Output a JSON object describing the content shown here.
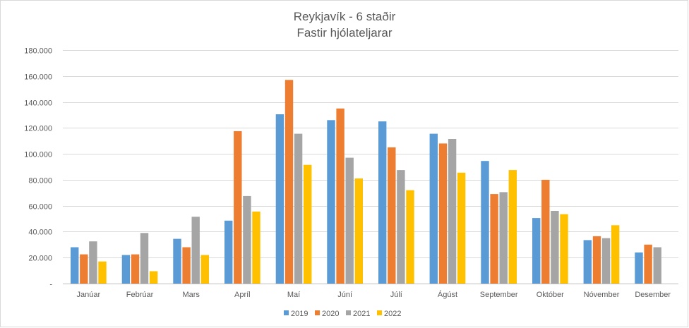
{
  "chart_data": {
    "type": "bar",
    "title": [
      "Reykjavík - 6 staðir",
      "Fastir hjólateljarar"
    ],
    "xlabel": "",
    "ylabel": "",
    "ylim": [
      0,
      180000
    ],
    "y_ticks": [
      0,
      20000,
      40000,
      60000,
      80000,
      100000,
      120000,
      140000,
      160000,
      180000
    ],
    "y_tick_labels": [
      "-",
      "20.000",
      "40.000",
      "60.000",
      "80.000",
      "100.000",
      "120.000",
      "140.000",
      "160.000",
      "180.000"
    ],
    "grid": true,
    "legend_position": "bottom",
    "categories": [
      "Janúar",
      "Febrúar",
      "Mars",
      "Apríl",
      "Maí",
      "Júní",
      "Júlí",
      "Ágúst",
      "September",
      "Október",
      "Nóvember",
      "Desember"
    ],
    "series": [
      {
        "name": "2019",
        "color": "#5b9bd5",
        "values": [
          28000,
          22000,
          34500,
          48500,
          130500,
          126000,
          125000,
          115500,
          94500,
          50500,
          33500,
          24000
        ]
      },
      {
        "name": "2020",
        "color": "#ed7d31",
        "values": [
          22500,
          22500,
          28000,
          117500,
          157000,
          135000,
          105000,
          108000,
          69000,
          80000,
          36500,
          30000
        ]
      },
      {
        "name": "2021",
        "color": "#a5a5a5",
        "values": [
          32500,
          39000,
          51500,
          67500,
          115500,
          97000,
          87500,
          111500,
          70500,
          56000,
          35000,
          28000
        ]
      },
      {
        "name": "2022",
        "color": "#ffc000",
        "values": [
          17000,
          9500,
          22000,
          55500,
          91500,
          81000,
          72000,
          85500,
          87500,
          53500,
          45000,
          null
        ]
      }
    ]
  }
}
